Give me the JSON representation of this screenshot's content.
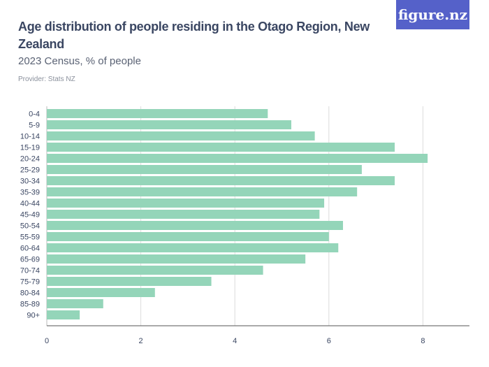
{
  "title": "Age distribution of people residing in the Otago Region, New Zealand",
  "subtitle": "2023 Census, % of people",
  "provider": "Provider: Stats NZ",
  "logo": "figure.nz",
  "colors": {
    "bar": "#94d5b9",
    "logo_bg": "#5561c9",
    "grid": "#dcdcdc",
    "text": "#3a4662"
  },
  "chart_data": {
    "type": "bar",
    "orientation": "horizontal",
    "categories": [
      "0-4",
      "5-9",
      "10-14",
      "15-19",
      "20-24",
      "25-29",
      "30-34",
      "35-39",
      "40-44",
      "45-49",
      "50-54",
      "55-59",
      "60-64",
      "65-69",
      "70-74",
      "75-79",
      "80-84",
      "85-89",
      "90+"
    ],
    "values": [
      4.7,
      5.2,
      5.7,
      7.4,
      8.1,
      6.7,
      7.4,
      6.6,
      5.9,
      5.8,
      6.3,
      6.0,
      6.2,
      5.5,
      4.6,
      3.5,
      2.3,
      1.2,
      0.7
    ],
    "xlim": [
      0,
      9
    ],
    "xticks": [
      "0",
      "2",
      "4",
      "6",
      "8"
    ],
    "grid": true,
    "title": "Age distribution of people residing in the Otago Region, New Zealand",
    "xlabel": "",
    "ylabel": ""
  }
}
